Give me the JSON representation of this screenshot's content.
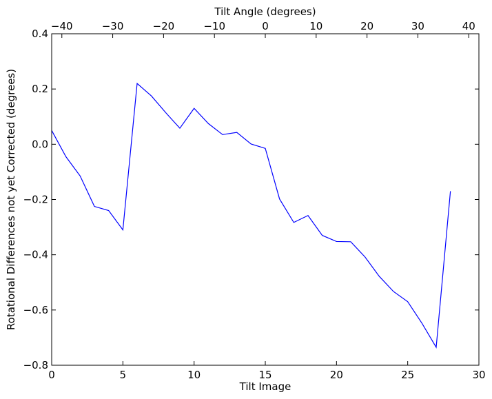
{
  "chart_data": {
    "type": "line",
    "xlabel": "Tilt Image",
    "ylabel": "Rotational Differences not yet Corrected (degrees)",
    "x2label": "Tilt Angle (degrees)",
    "xlim": [
      0,
      30
    ],
    "ylim": [
      -0.8,
      0.4
    ],
    "x2lim": [
      -42,
      42
    ],
    "xticks": [
      0,
      5,
      10,
      15,
      20,
      25,
      30
    ],
    "yticks": [
      -0.8,
      -0.6,
      -0.4,
      -0.2,
      0.0,
      0.2,
      0.4
    ],
    "x2ticks": [
      -40,
      -30,
      -20,
      -10,
      0,
      10,
      20,
      30,
      40
    ],
    "xtick_labels": [
      "0",
      "5",
      "10",
      "15",
      "20",
      "25",
      "30"
    ],
    "ytick_labels": [
      "−0.8",
      "−0.6",
      "−0.4",
      "−0.2",
      "0.0",
      "0.2",
      "0.4"
    ],
    "x2tick_labels": [
      "−40",
      "−30",
      "−20",
      "−10",
      "0",
      "10",
      "20",
      "30",
      "40"
    ],
    "grid": false,
    "series": [
      {
        "color": "#0000ff",
        "x": [
          0,
          1,
          2,
          3,
          4,
          5,
          6,
          7,
          8,
          9,
          10,
          11,
          12,
          13,
          14,
          15,
          16,
          17,
          18,
          19,
          20,
          21,
          22,
          23,
          24,
          25,
          26,
          27,
          28
        ],
        "values": [
          0.05,
          -0.045,
          -0.115,
          -0.225,
          -0.24,
          -0.31,
          0.22,
          0.175,
          0.115,
          0.058,
          0.13,
          0.075,
          0.035,
          0.043,
          0.001,
          -0.015,
          -0.198,
          -0.283,
          -0.258,
          -0.33,
          -0.352,
          -0.353,
          -0.408,
          -0.478,
          -0.533,
          -0.57,
          -0.648,
          -0.735,
          -0.17
        ]
      }
    ]
  }
}
